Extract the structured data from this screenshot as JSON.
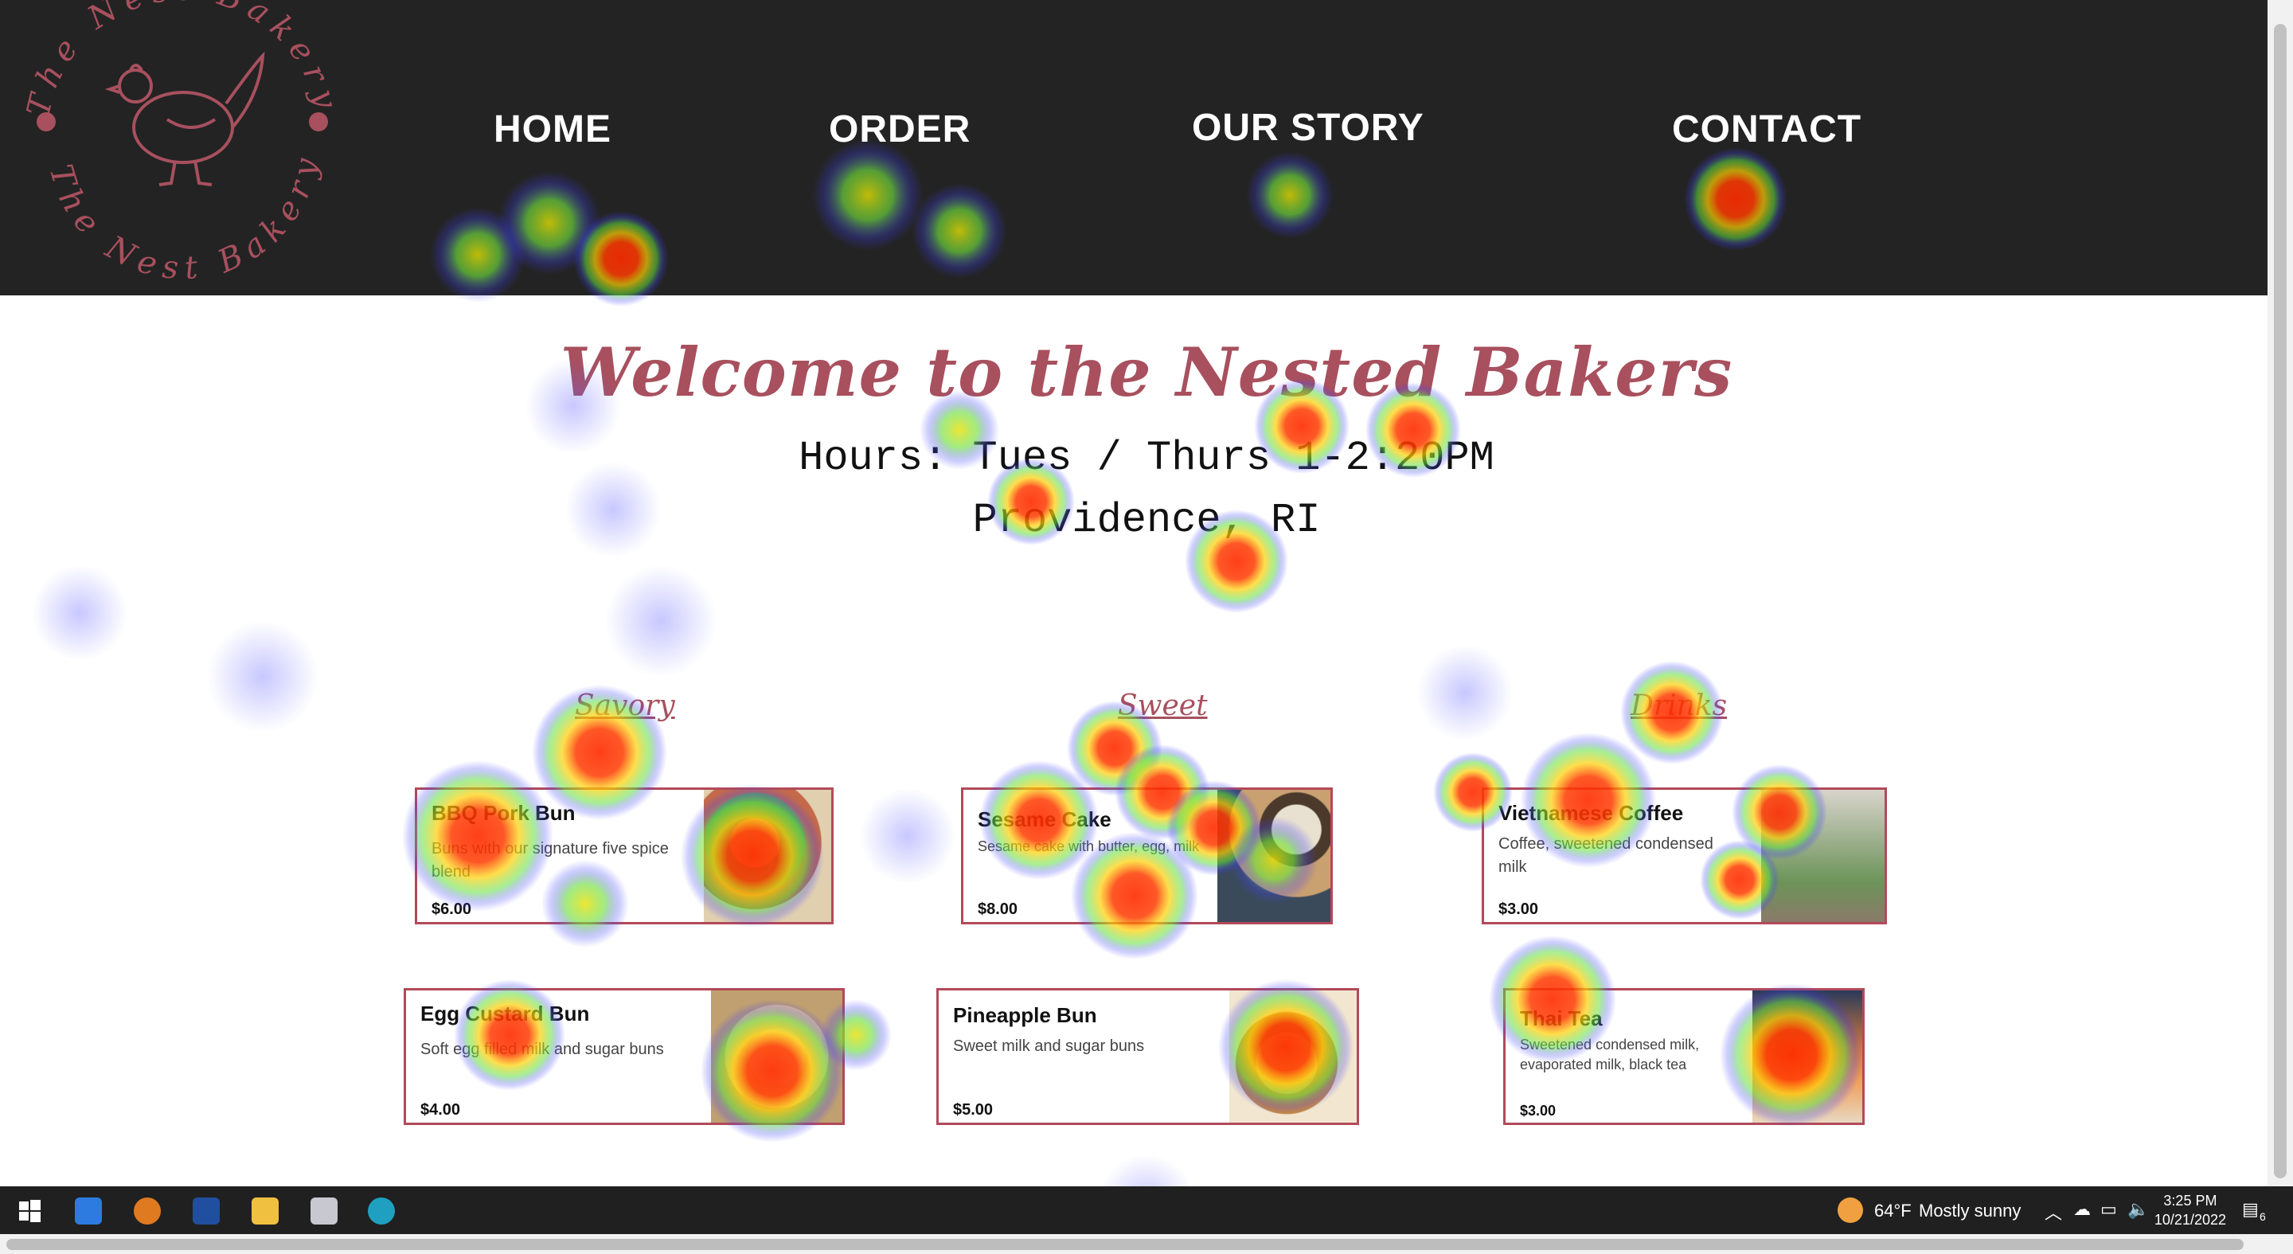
{
  "logo": {
    "top_text": "The Nest Bakery",
    "bottom_text": "The Nest Bakery",
    "icon": "hen-icon",
    "color": "#a8505e"
  },
  "nav": {
    "items": [
      "HOME",
      "ORDER",
      "OUR STORY",
      "CONTACT"
    ]
  },
  "hero": {
    "title": "Welcome to the Nested Bakers",
    "hours": "Hours: Tues / Thurs 1-2:20PM",
    "location": "Providence, RI"
  },
  "categories": [
    "Savory",
    "Sweet",
    "Drinks"
  ],
  "menu": {
    "savory": [
      {
        "name": "BBQ Pork Bun",
        "desc": "Buns with our signature five spice blend",
        "price": "$6.00"
      },
      {
        "name": "Egg Custard Bun",
        "desc": "Soft egg filled milk and sugar buns",
        "price": "$4.00"
      }
    ],
    "sweet": [
      {
        "name": "Sesame Cake",
        "desc": "Sesame cake with butter, egg, milk",
        "price": "$8.00"
      },
      {
        "name": "Pineapple Bun",
        "desc": "Sweet milk and sugar buns",
        "price": "$5.00"
      }
    ],
    "drinks": [
      {
        "name": "Vietnamese Coffee",
        "desc": "Coffee, sweetened condensed milk",
        "price": "$3.00"
      },
      {
        "name": "Thai Tea",
        "desc": "Sweetened condensed milk, evaporated milk, black tea",
        "price": "$3.00"
      }
    ]
  },
  "taskbar": {
    "weather_temp": "64°F",
    "weather_desc": "Mostly sunny",
    "time": "3:25 PM",
    "date": "10/21/2022",
    "notification_count": "6",
    "apps": [
      "start-icon",
      "mail-icon",
      "app-orange-icon",
      "powershell-icon",
      "file-explorer-icon",
      "snipping-icon",
      "edge-icon"
    ]
  },
  "colors": {
    "accent": "#a8505e",
    "header_bg": "#232323",
    "card_border": "#b24a5a"
  }
}
